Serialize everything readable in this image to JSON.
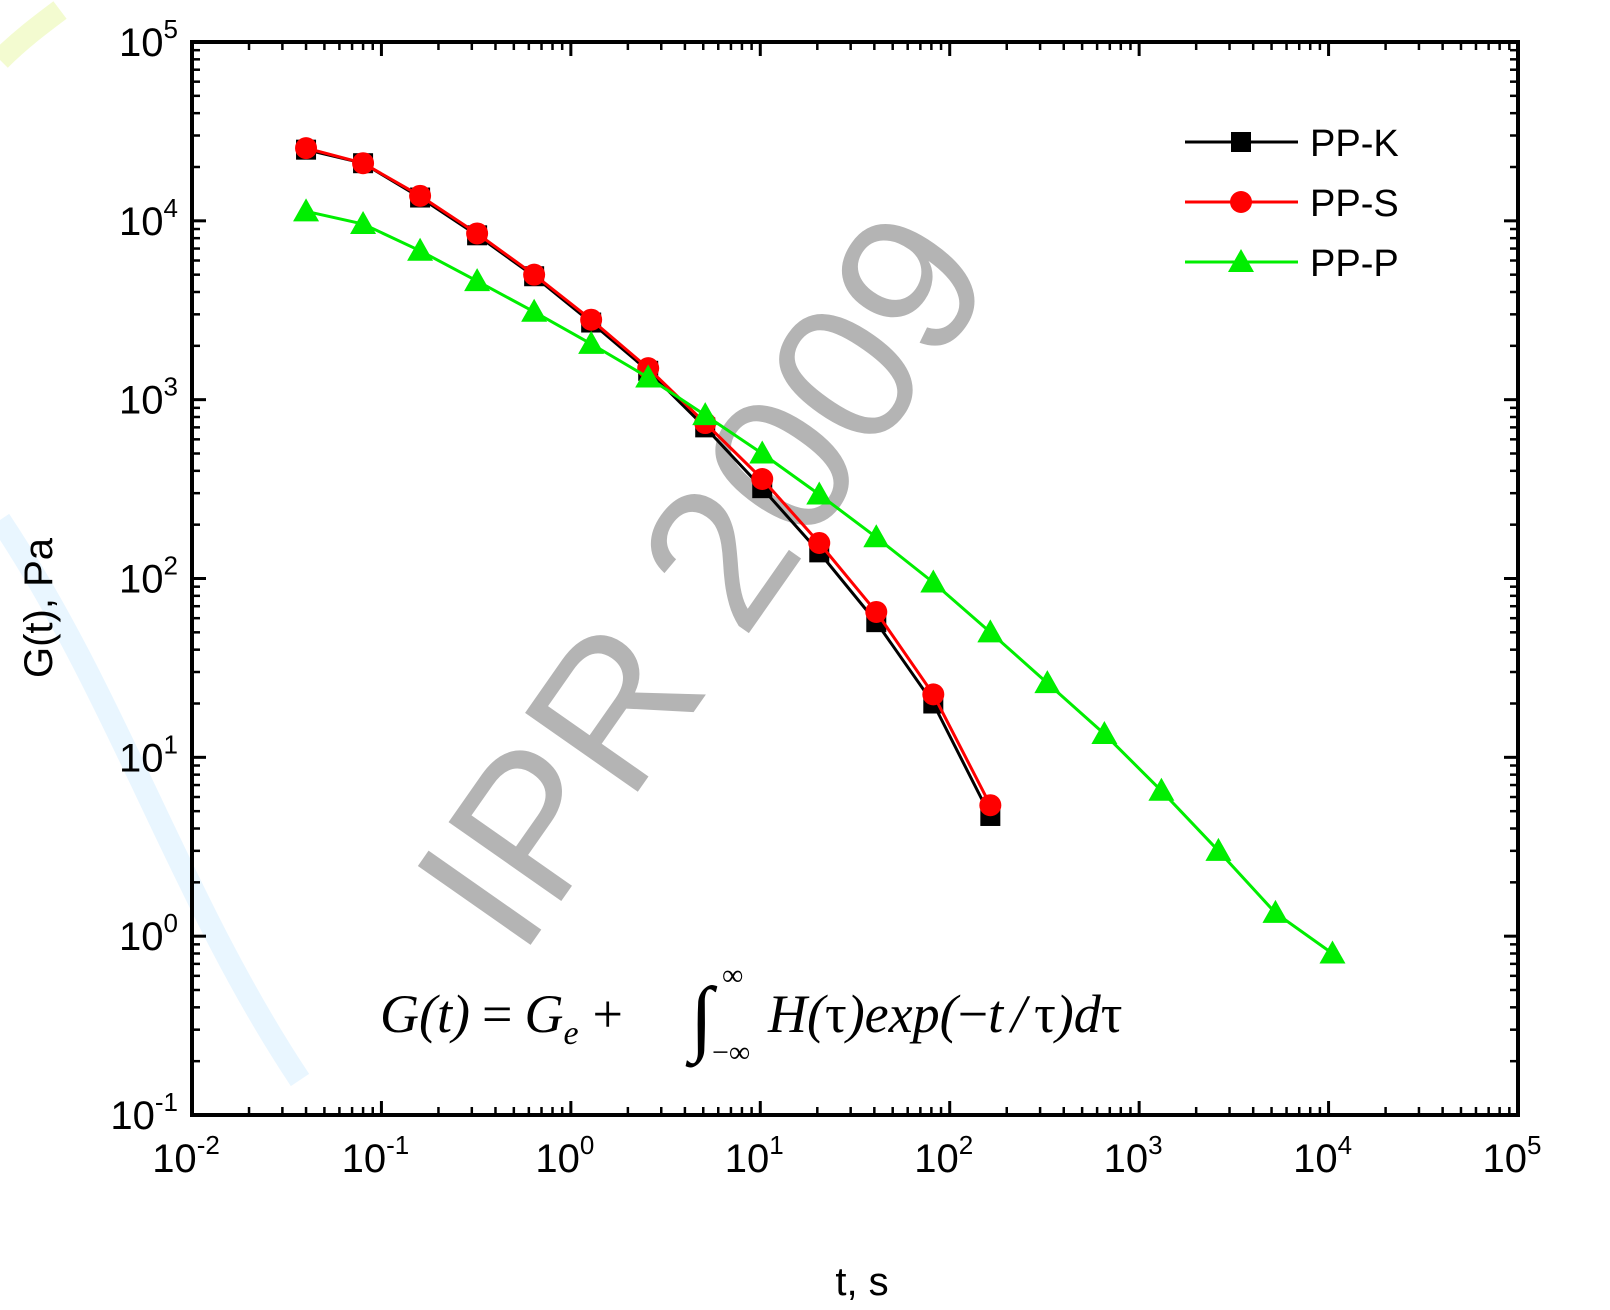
{
  "chart_data": {
    "type": "line",
    "title": "",
    "xlabel": "t, s",
    "ylabel": "G(t), Pa",
    "xscale": "log",
    "yscale": "log",
    "xlim": [
      0.01,
      100000
    ],
    "ylim": [
      0.1,
      100000
    ],
    "x_tick_base": "10",
    "x_tick_exponents": [
      "-2",
      "-1",
      "0",
      "1",
      "2",
      "3",
      "4",
      "5"
    ],
    "y_tick_base": "10",
    "y_tick_exponents": [
      "-1",
      "0",
      "1",
      "2",
      "3",
      "4",
      "5"
    ],
    "grid": false,
    "legend_position": "top-right",
    "series": [
      {
        "name": "PP-K",
        "color": "#000000",
        "marker": "square",
        "x": [
          0.04,
          0.08,
          0.16,
          0.32,
          0.64,
          1.28,
          2.56,
          5.12,
          10.24,
          20.48,
          40.96,
          81.92,
          163.84
        ],
        "y": [
          25000,
          21000,
          13500,
          8300,
          4900,
          2700,
          1450,
          700,
          320,
          140,
          57,
          20,
          4.7
        ]
      },
      {
        "name": "PP-S",
        "color": "#ff0000",
        "marker": "circle",
        "x": [
          0.04,
          0.08,
          0.16,
          0.32,
          0.64,
          1.28,
          2.56,
          5.12,
          10.24,
          20.48,
          40.96,
          81.92,
          163.84
        ],
        "y": [
          25500,
          21000,
          13800,
          8500,
          5000,
          2800,
          1500,
          740,
          360,
          158,
          65,
          22.5,
          5.4
        ]
      },
      {
        "name": "PP-P",
        "color": "#00ee00",
        "marker": "triangle",
        "x": [
          0.04,
          0.08,
          0.16,
          0.32,
          0.64,
          1.28,
          2.56,
          5.12,
          10.24,
          20.48,
          40.96,
          81.92,
          163.84,
          327.68,
          655.36,
          1310.72,
          2621.44,
          5242.88,
          10485.76
        ],
        "y": [
          11300,
          9600,
          6800,
          4600,
          3100,
          2050,
          1330,
          820,
          500,
          295,
          170,
          95,
          50,
          26,
          13.5,
          6.5,
          3.0,
          1.35,
          0.8
        ]
      }
    ],
    "annotations": {
      "equation": {
        "G": "G",
        "t": "t",
        "equals": "=",
        "Ge": "G",
        "e_sub": "e",
        "plus": "+",
        "integral": "∫",
        "upper": "∞",
        "lower": "−∞",
        "H": "H",
        "tau": "τ",
        "exp": "exp",
        "minus": "−",
        "slash": "/",
        "d": "d",
        "lparen": "(",
        "rparen": ")"
      },
      "watermark": "IPR 2009"
    }
  }
}
